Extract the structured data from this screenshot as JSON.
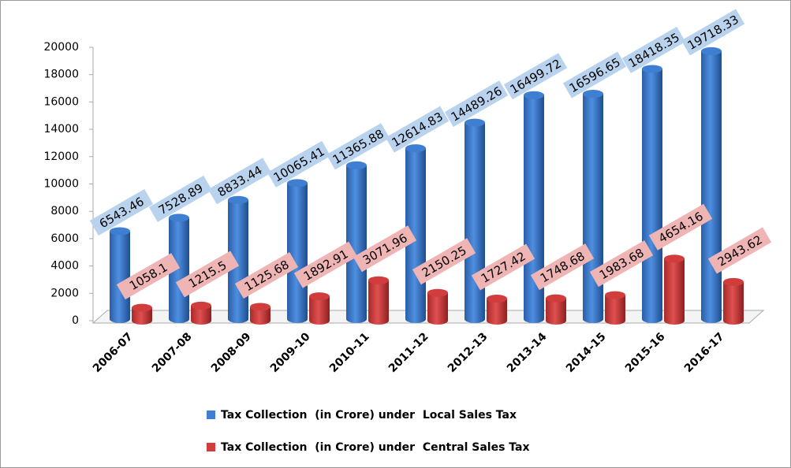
{
  "chart_data": {
    "type": "bar3d",
    "categories": [
      "2006-07",
      "2007-08",
      "2008-09",
      "2009-10",
      "2010-11",
      "2011-12",
      "2012-13",
      "2013-14",
      "2014-15",
      "2015-16",
      "2016-17"
    ],
    "series": [
      {
        "name": "Tax Collection  (in Crore) under  Local Sales Tax",
        "color": "#3f7fd1",
        "label_color": "#b9d3ee",
        "values": [
          6543.46,
          7528.89,
          8833.44,
          10065.41,
          11365.88,
          12614.83,
          14489.26,
          16499.72,
          16596.65,
          18418.35,
          19718.33
        ]
      },
      {
        "name": "Tax Collection  (in Crore) under  Central Sales Tax",
        "color": "#d13c3c",
        "label_color": "#efb4b4",
        "values": [
          1058.1,
          1215.5,
          1125.68,
          1892.91,
          3071.96,
          2150.25,
          1727.42,
          1748.68,
          1983.68,
          4654.16,
          2943.62
        ]
      }
    ],
    "ylim": [
      0,
      20000
    ],
    "yticks": [
      0,
      2000,
      4000,
      6000,
      8000,
      10000,
      12000,
      14000,
      16000,
      18000,
      20000
    ],
    "legend": "bottom"
  }
}
